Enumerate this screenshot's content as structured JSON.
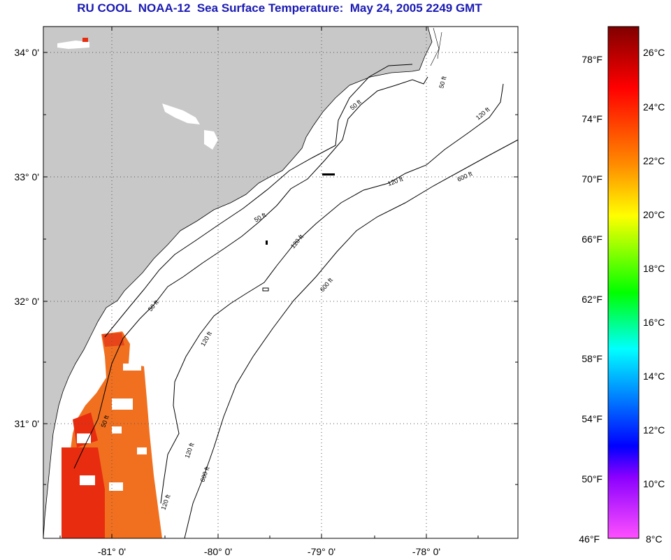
{
  "title": "RU COOL  NOAA-12  Sea Surface Temperature:  May 24, 2005 2249 GMT",
  "map": {
    "lat_labels": [
      "34° 0'",
      "33° 0'",
      "32° 0'",
      "31° 0'"
    ],
    "lon_labels": [
      "-81° 0'",
      "-80° 0'",
      "-79° 0'",
      "-78° 0'"
    ],
    "contour_labels": [
      "50 ft",
      "50 ft",
      "50 ft",
      "50 ft",
      "50 ft",
      "120 ft",
      "120 ft",
      "120 ft",
      "120 ft",
      "120 ft",
      "120 ft",
      "600 ft",
      "600 ft",
      "600 ft"
    ]
  },
  "colorbar": {
    "fahrenheit": [
      "78°F",
      "74°F",
      "70°F",
      "66°F",
      "62°F",
      "58°F",
      "54°F",
      "50°F",
      "46°F"
    ],
    "celsius": [
      "26°C",
      "24°C",
      "22°C",
      "20°C",
      "18°C",
      "16°C",
      "14°C",
      "12°C",
      "10°C",
      "8°C"
    ],
    "colors": {
      "c0": "#8b0000",
      "c1": "#ff0000",
      "c2": "#ff8c00",
      "c3": "#ffff00",
      "c4": "#00ff00",
      "c5": "#00ffff",
      "c6": "#0000ff",
      "c7": "#8000ff",
      "c8": "#ff40ff"
    }
  },
  "colors": {
    "land": "#c8c8c8",
    "sst": "#f07020",
    "sst_hot": "#e82c10",
    "title": "#1a1ab4"
  }
}
